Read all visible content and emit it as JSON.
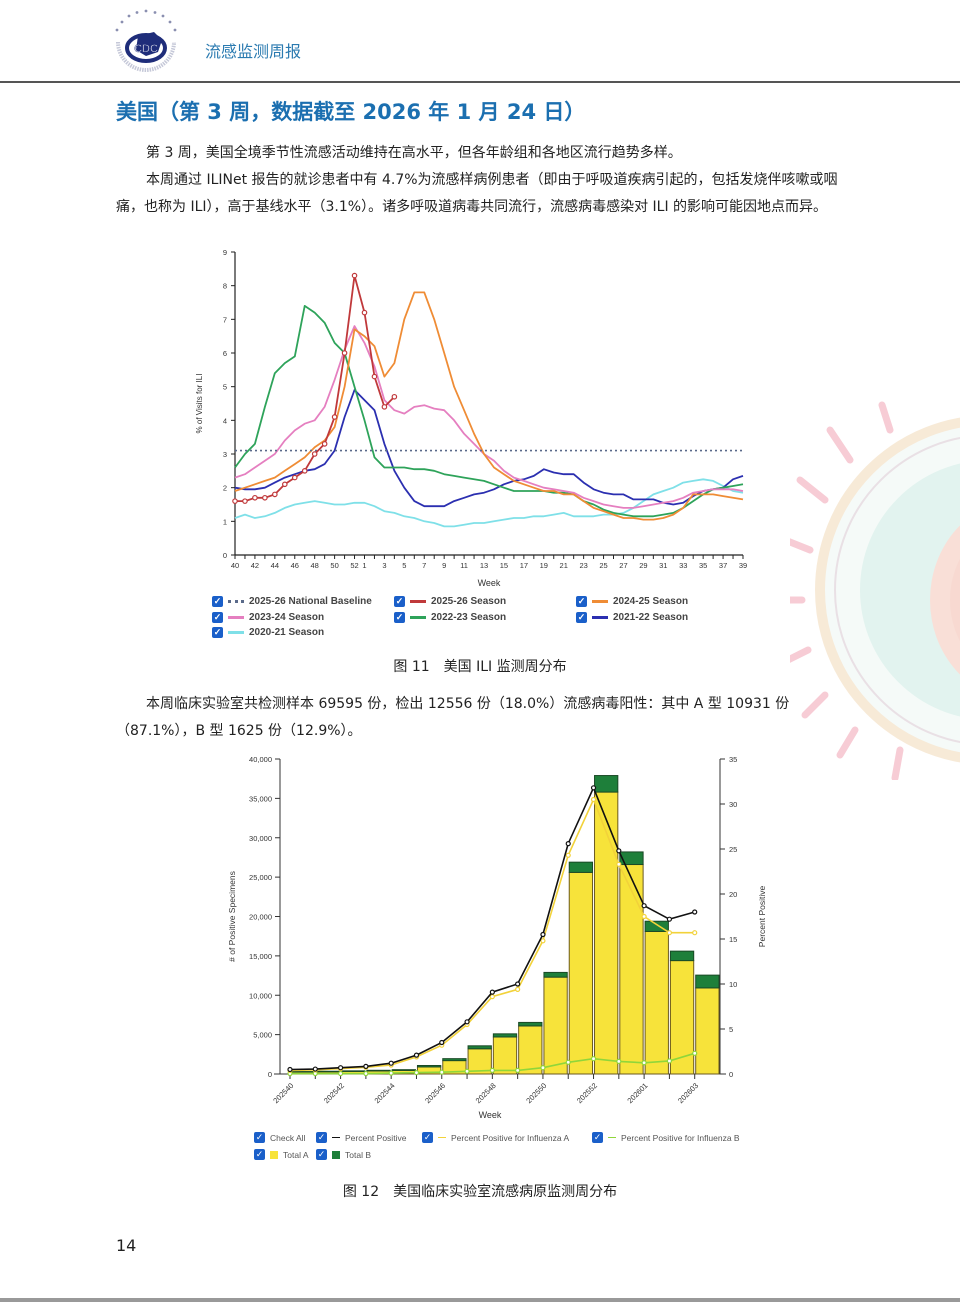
{
  "header": {
    "title": "流感监测周报",
    "logo_text": "CDC",
    "logo_ring_text": "CHINESE CENTER FOR DISEASE CONTROL AND PREVENTION"
  },
  "section": {
    "title": "美国（第 3 周，数据截至 2026 年 1 月 24 日）"
  },
  "paragraphs": {
    "p1": "第 3 周，美国全境季节性流感活动维持在高水平，但各年龄组和各地区流行趋势多样。",
    "p2": "本周通过 ILINet 报告的就诊患者中有 4.7%为流感样病例患者（即由于呼吸道疾病引起的，包括发烧伴咳嗽或咽痛，也称为 ILI），高于基线水平（3.1%）。诸多呼吸道病毒共同流行，流感病毒感染对 ILI 的影响可能因地点而异。",
    "p3": "本周临床实验室共检测样本 69595 份，检出 12556 份（18.0%）流感病毒阳性：其中 A 型 10931 份（87.1%），B 型 1625 份（12.9%）。"
  },
  "figure11": {
    "caption": "图 11　美国 ILI 监测周分布",
    "legend": [
      {
        "label": "2025-26 National Baseline",
        "color": "#5a6a8a",
        "style": "dotted",
        "checked": true
      },
      {
        "label": "2025-26 Season",
        "color": "#c0393b",
        "style": "solid",
        "checked": true
      },
      {
        "label": "2024-25 Season",
        "color": "#ef8c35",
        "style": "solid",
        "checked": true
      },
      {
        "label": "2023-24 Season",
        "color": "#e57fc0",
        "style": "solid",
        "checked": true
      },
      {
        "label": "2022-23 Season",
        "color": "#2ea35a",
        "style": "solid",
        "checked": true
      },
      {
        "label": "2021-22 Season",
        "color": "#2b2fb0",
        "style": "solid",
        "checked": true
      },
      {
        "label": "2020-21 Season",
        "color": "#7fe0e8",
        "style": "solid",
        "checked": true
      }
    ]
  },
  "figure12": {
    "caption": "图 12　美国临床实验室流感病原监测周分布",
    "legend": [
      {
        "label": "Check All",
        "swatch": "none",
        "color": "",
        "checked": true
      },
      {
        "label": "Percent Positive",
        "swatch": "line",
        "color": "#111111",
        "checked": true
      },
      {
        "label": "Percent Positive for Influenza A",
        "swatch": "line",
        "color": "#f2d23a",
        "checked": true
      },
      {
        "label": "Percent Positive for Influenza B",
        "swatch": "line",
        "color": "#8fd63a",
        "checked": true
      },
      {
        "label": "Total A",
        "swatch": "box",
        "color": "#f7e33a",
        "checked": true
      },
      {
        "label": "Total B",
        "swatch": "box",
        "color": "#1e7f3a",
        "checked": true
      }
    ]
  },
  "page_number": "14",
  "chart_data": [
    {
      "type": "line",
      "title": "US ILI weekly distribution",
      "xlabel": "Week",
      "ylabel": "% of Visits for ILI",
      "ylim": [
        0,
        9
      ],
      "yticks": [
        0,
        1,
        2,
        3,
        4,
        5,
        6,
        7,
        8,
        9
      ],
      "x_tick_labels": [
        "40",
        "42",
        "44",
        "46",
        "48",
        "50",
        "52",
        "1",
        "3",
        "5",
        "7",
        "9",
        "11",
        "13",
        "15",
        "17",
        "19",
        "21",
        "23",
        "25",
        "27",
        "29",
        "31",
        "33",
        "35",
        "37",
        "39"
      ],
      "x": [
        "40",
        "41",
        "42",
        "43",
        "44",
        "45",
        "46",
        "47",
        "48",
        "49",
        "50",
        "51",
        "52",
        "1",
        "2",
        "3",
        "4",
        "5",
        "6",
        "7",
        "8",
        "9",
        "10",
        "11",
        "12",
        "13",
        "14",
        "15",
        "16",
        "17",
        "18",
        "19",
        "20",
        "21",
        "22",
        "23",
        "24",
        "25",
        "26",
        "27",
        "28",
        "29",
        "30",
        "31",
        "32",
        "33",
        "34",
        "35",
        "36",
        "37",
        "38",
        "39"
      ],
      "grid": false,
      "legend_position": "bottom",
      "series": [
        {
          "name": "2025-26 National Baseline",
          "values": [
            3.1,
            3.1,
            3.1,
            3.1,
            3.1,
            3.1,
            3.1,
            3.1,
            3.1,
            3.1,
            3.1,
            3.1,
            3.1,
            3.1,
            3.1,
            3.1,
            3.1,
            3.1,
            3.1,
            3.1,
            3.1,
            3.1,
            3.1,
            3.1,
            3.1,
            3.1,
            3.1,
            3.1,
            3.1,
            3.1,
            3.1,
            3.1,
            3.1,
            3.1,
            3.1,
            3.1,
            3.1,
            3.1,
            3.1,
            3.1,
            3.1,
            3.1,
            3.1,
            3.1,
            3.1,
            3.1,
            3.1,
            3.1,
            3.1,
            3.1,
            3.1,
            3.1
          ]
        },
        {
          "name": "2025-26 Season",
          "values": [
            1.6,
            1.6,
            1.7,
            1.7,
            1.8,
            2.1,
            2.3,
            2.5,
            3.0,
            3.3,
            4.1,
            6.0,
            8.3,
            7.2,
            5.3,
            4.4,
            4.7
          ]
        },
        {
          "name": "2024-25 Season",
          "values": [
            1.9,
            2.0,
            2.1,
            2.2,
            2.3,
            2.5,
            2.7,
            2.9,
            3.2,
            3.4,
            3.8,
            5.0,
            6.7,
            6.5,
            6.2,
            5.3,
            5.7,
            7.0,
            7.8,
            7.8,
            7.0,
            6.0,
            5.0,
            4.3,
            3.6,
            3.0,
            2.6,
            2.4,
            2.2,
            2.1,
            2.0,
            1.9,
            1.9,
            1.8,
            1.8,
            1.6,
            1.4,
            1.3,
            1.2,
            1.1,
            1.1,
            1.05,
            1.05,
            1.1,
            1.2,
            1.4,
            1.8,
            1.8,
            1.8,
            1.75,
            1.7,
            1.65
          ]
        },
        {
          "name": "2023-24 Season",
          "values": [
            2.3,
            2.4,
            2.6,
            2.8,
            3.0,
            3.4,
            3.7,
            3.9,
            4.0,
            4.4,
            5.2,
            6.1,
            6.8,
            6.3,
            5.6,
            4.6,
            4.3,
            4.2,
            4.4,
            4.45,
            4.35,
            4.3,
            4.0,
            3.6,
            3.3,
            3.0,
            2.8,
            2.5,
            2.3,
            2.2,
            2.1,
            2.0,
            1.95,
            1.9,
            1.85,
            1.7,
            1.6,
            1.5,
            1.45,
            1.4,
            1.4,
            1.45,
            1.5,
            1.55,
            1.6,
            1.7,
            1.85,
            1.9,
            1.95,
            1.95,
            1.95,
            1.9
          ]
        },
        {
          "name": "2022-23 Season",
          "values": [
            2.6,
            3.0,
            3.3,
            4.4,
            5.4,
            5.7,
            5.9,
            7.4,
            7.2,
            6.9,
            6.3,
            6.0,
            5.0,
            4.0,
            2.9,
            2.6,
            2.6,
            2.6,
            2.55,
            2.55,
            2.5,
            2.4,
            2.35,
            2.3,
            2.25,
            2.2,
            2.1,
            2.0,
            1.9,
            1.9,
            1.9,
            1.9,
            1.85,
            1.85,
            1.8,
            1.6,
            1.5,
            1.35,
            1.25,
            1.2,
            1.15,
            1.15,
            1.15,
            1.2,
            1.25,
            1.4,
            1.6,
            1.8,
            1.95,
            2.0,
            2.05,
            2.1
          ]
        },
        {
          "name": "2021-22 Season",
          "values": [
            2.0,
            1.95,
            1.95,
            2.0,
            2.15,
            2.3,
            2.4,
            2.5,
            2.55,
            2.7,
            3.1,
            4.1,
            4.9,
            4.6,
            4.3,
            3.3,
            2.5,
            2.0,
            1.6,
            1.45,
            1.45,
            1.45,
            1.6,
            1.7,
            1.8,
            1.85,
            1.95,
            2.1,
            2.2,
            2.25,
            2.35,
            2.55,
            2.45,
            2.4,
            2.4,
            2.15,
            1.95,
            1.85,
            1.8,
            1.8,
            1.65,
            1.65,
            1.65,
            1.55,
            1.5,
            1.55,
            1.75,
            1.9,
            1.95,
            2.0,
            2.25,
            2.35
          ]
        },
        {
          "name": "2020-21 Season",
          "values": [
            1.1,
            1.2,
            1.1,
            1.15,
            1.25,
            1.4,
            1.5,
            1.55,
            1.6,
            1.55,
            1.5,
            1.5,
            1.55,
            1.55,
            1.45,
            1.3,
            1.25,
            1.15,
            1.1,
            1.0,
            0.95,
            0.85,
            0.85,
            0.9,
            0.95,
            0.95,
            1.0,
            1.05,
            1.1,
            1.1,
            1.15,
            1.15,
            1.2,
            1.25,
            1.15,
            1.15,
            1.15,
            1.2,
            1.2,
            1.25,
            1.4,
            1.6,
            1.8,
            1.9,
            2.0,
            2.15,
            2.2,
            2.25,
            2.2,
            2.05,
            1.9,
            1.85
          ]
        }
      ]
    },
    {
      "type": "bar",
      "title": "US clinical laboratory influenza surveillance",
      "xlabel": "Week",
      "ylabel": "# of Positive Specimens",
      "ylabel_right": "Percent Positive",
      "ylim": [
        0,
        40000
      ],
      "ylim_right": [
        0,
        35
      ],
      "yticks": [
        "0",
        "5,000",
        "10,000",
        "15,000",
        "20,000",
        "25,000",
        "30,000",
        "35,000",
        "40,000"
      ],
      "yticks_right": [
        0,
        5,
        10,
        15,
        20,
        25,
        30,
        35
      ],
      "x_tick_labels": [
        "202540",
        "202542",
        "202544",
        "202546",
        "202548",
        "202550",
        "202552",
        "202601",
        "202603"
      ],
      "categories": [
        "202540",
        "202541",
        "202542",
        "202543",
        "202544",
        "202545",
        "202546",
        "202547",
        "202548",
        "202549",
        "202550",
        "202551",
        "202552",
        "202553",
        "202601",
        "202602",
        "202603"
      ],
      "stacked": true,
      "legend_position": "bottom",
      "series": [
        {
          "name": "Total A",
          "type": "bar",
          "values": [
            250,
            280,
            320,
            380,
            450,
            900,
            1700,
            3200,
            4700,
            6100,
            12300,
            25600,
            35800,
            26600,
            18100,
            14400,
            10931
          ]
        },
        {
          "name": "Total B",
          "type": "bar",
          "values": [
            60,
            70,
            80,
            90,
            100,
            180,
            250,
            380,
            400,
            450,
            600,
            1300,
            2100,
            1600,
            1300,
            1200,
            1625
          ]
        },
        {
          "name": "Percent Positive",
          "type": "line",
          "axis": "right",
          "values": [
            0.5,
            0.55,
            0.7,
            0.85,
            1.2,
            2.1,
            3.5,
            5.8,
            9.1,
            10.0,
            15.5,
            25.6,
            31.8,
            24.8,
            18.7,
            17.2,
            18.0
          ]
        },
        {
          "name": "Percent Positive for Influenza A",
          "type": "line",
          "axis": "right",
          "values": [
            0.4,
            0.45,
            0.6,
            0.75,
            1.0,
            1.9,
            3.2,
            5.5,
            8.6,
            9.4,
            14.8,
            24.3,
            30.5,
            23.3,
            17.5,
            15.7,
            15.7
          ]
        },
        {
          "name": "Percent Positive for Influenza B",
          "type": "line",
          "axis": "right",
          "values": [
            0.05,
            0.05,
            0.05,
            0.05,
            0.1,
            0.15,
            0.2,
            0.3,
            0.4,
            0.4,
            0.7,
            1.3,
            1.7,
            1.4,
            1.25,
            1.45,
            2.3
          ]
        }
      ]
    }
  ]
}
